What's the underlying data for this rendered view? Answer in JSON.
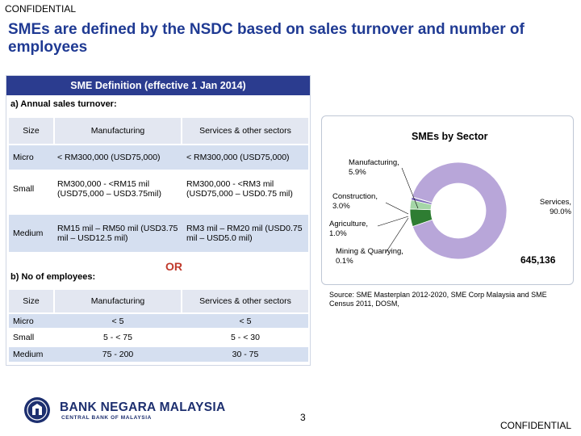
{
  "header": {
    "confidential": "CONFIDENTIAL"
  },
  "title": "SMEs are defined by the NSDC based on sales turnover and number of employees",
  "definition": {
    "heading": "SME Definition (effective 1 Jan 2014)",
    "sales_section": {
      "label": "a) Annual sales turnover:",
      "columns": [
        "Size",
        "Manufacturing",
        "Services & other sectors"
      ],
      "rows": [
        {
          "size": "Micro",
          "manufacturing": "< RM300,000 (USD75,000)",
          "services": "< RM300,000 (USD75,000)"
        },
        {
          "size": "Small",
          "manufacturing": "RM300,000 - <RM15 mil (USD75,000 – USD3.75mil)",
          "services": "RM300,000 - <RM3 mil (USD75,000 – USD0.75 mil)"
        },
        {
          "size": "Medium",
          "manufacturing": "RM15 mil – RM50 mil (USD3.75 mil – USD12.5 mil)",
          "services": "RM3 mil – RM20 mil (USD0.75 mil – USD5.0 mil)"
        }
      ]
    },
    "or_text": "OR",
    "employees_section": {
      "label": "b) No of employees:",
      "columns": [
        "Size",
        "Manufacturing",
        "Services & other sectors"
      ],
      "rows": [
        {
          "size": "Micro",
          "manufacturing": "< 5",
          "services": "< 5"
        },
        {
          "size": "Small",
          "manufacturing": "5 - < 75",
          "services": "5 - < 30"
        },
        {
          "size": "Medium",
          "manufacturing": "75 - 200",
          "services": "30 - 75"
        }
      ]
    }
  },
  "chart_data": {
    "type": "pie",
    "title": "SMEs by Sector",
    "categories": [
      "Services",
      "Manufacturing",
      "Construction",
      "Agriculture",
      "Mining & Quarrying"
    ],
    "values": [
      90.0,
      5.9,
      3.0,
      1.0,
      0.1
    ],
    "labels": [
      "Services, 90.0%",
      "Manufacturing, 5.9%",
      "Construction, 3.0%",
      "Agriculture, 1.0%",
      "Mining & Quarrying, 0.1%"
    ],
    "total": "645,136",
    "colors": [
      "#b8a6d9",
      "#2e7d32",
      "#a5d6a7",
      "#7b68b8",
      "#9e9e9e"
    ]
  },
  "source": "Source: SME Masterplan 2012-2020, SME Corp Malaysia and SME Census 2011, DOSM,",
  "page_number": "3",
  "footer": {
    "confidential": "CONFIDENTIAL",
    "bank_name": "BANK NEGARA MALAYSIA",
    "bank_subtitle": "CENTRAL BANK OF MALAYSIA"
  }
}
